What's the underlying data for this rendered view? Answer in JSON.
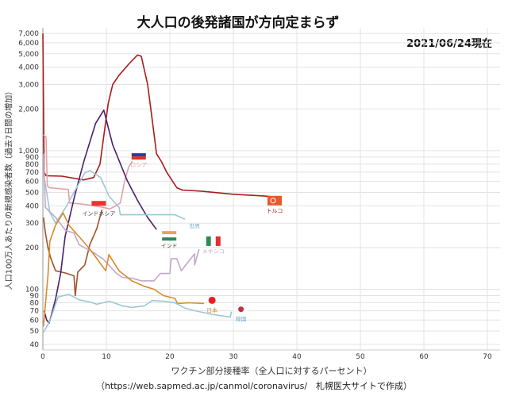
{
  "chart_data": {
    "type": "line",
    "title": "大人口の後発諸国が方向定まらず",
    "subtitle": "2021/06/24現在",
    "xlabel": "ワクチン部分接種率（全人口に対するパーセント）",
    "ylabel": "人口100万人あたりの新規感染者数（過去7日間の増加）",
    "source": "（https://web.sapmed.ac.jp/canmol/coronavirus/　札幌医大サイトで作成）",
    "xlim": [
      0,
      72
    ],
    "ylim": [
      36.5,
      7700
    ],
    "yscale": "log",
    "grid": true,
    "x_ticks": [
      0,
      10,
      20,
      30,
      40,
      50,
      60,
      70
    ],
    "y_ticks": [
      40,
      50,
      60,
      70,
      80,
      90,
      100,
      200,
      300,
      400,
      500,
      600,
      700,
      800,
      900,
      1000,
      2000,
      3000,
      4000,
      5000,
      6000,
      7000
    ],
    "y_tick_labels": [
      "40",
      "50",
      "60",
      "70",
      "80",
      "90",
      "100",
      "200",
      "300",
      "400",
      "500",
      "600",
      "700",
      "800",
      "900",
      "1,000",
      "2,000",
      "3,000",
      "4,000",
      "5,000",
      "6,000",
      "7,000"
    ],
    "series": [
      {
        "name": "トルコ",
        "color": "#a81c1c",
        "flag": "turkey-flag",
        "points": [
          [
            0,
            7000
          ],
          [
            0.2,
            700
          ],
          [
            0.5,
            660
          ],
          [
            3,
            655
          ],
          [
            6.4,
            615
          ],
          [
            8,
            640
          ],
          [
            9,
            800
          ],
          [
            9.8,
            1500
          ],
          [
            10.3,
            2200
          ],
          [
            11,
            3000
          ],
          [
            12,
            3500
          ],
          [
            13.5,
            4200
          ],
          [
            14.9,
            4900
          ],
          [
            15.5,
            4800
          ],
          [
            16.5,
            3000
          ],
          [
            17.2,
            1700
          ],
          [
            17.9,
            950
          ],
          [
            18.7,
            830
          ],
          [
            19.5,
            700
          ],
          [
            21.1,
            540
          ],
          [
            22,
            520
          ],
          [
            25,
            510
          ],
          [
            30,
            485
          ],
          [
            35,
            470
          ],
          [
            37,
            460
          ]
        ]
      },
      {
        "name": "ロシア",
        "color": "#e8a0a0",
        "flag": "russia-flag",
        "points": [
          [
            0.1,
            1300
          ],
          [
            0.5,
            1250
          ],
          [
            0.7,
            560
          ],
          [
            1,
            540
          ],
          [
            3,
            530
          ],
          [
            4,
            525
          ],
          [
            4.2,
            420
          ],
          [
            6.6,
            410
          ],
          [
            9.5,
            390
          ],
          [
            10.5,
            380
          ],
          [
            11.5,
            400
          ],
          [
            12.2,
            420
          ],
          [
            12.9,
            610
          ],
          [
            13.5,
            760
          ],
          [
            14.1,
            840
          ]
        ]
      },
      {
        "name": "インドネシア",
        "color": "#a0522d",
        "flag": "indonesia-flag",
        "points": [
          [
            0.1,
            330
          ],
          [
            0.4,
            255
          ],
          [
            0.8,
            200
          ],
          [
            1.2,
            170
          ],
          [
            2,
            136
          ],
          [
            3.6,
            131
          ],
          [
            4.9,
            125
          ],
          [
            5.1,
            90
          ],
          [
            5.5,
            133
          ],
          [
            6.6,
            150
          ],
          [
            7.4,
            210
          ],
          [
            8.5,
            275
          ],
          [
            9.3,
            375
          ]
        ]
      },
      {
        "name": "インド",
        "color": "#4b1f6f",
        "flag": "india-flag",
        "points": [
          [
            0.2,
            70
          ],
          [
            0.6,
            60
          ],
          [
            1,
            57
          ],
          [
            2,
            85
          ],
          [
            2.8,
            130
          ],
          [
            3.5,
            240
          ],
          [
            5,
            470
          ],
          [
            6.5,
            850
          ],
          [
            8.3,
            1570
          ],
          [
            9.6,
            1960
          ],
          [
            11,
            1100
          ],
          [
            13.25,
            613
          ],
          [
            15,
            430
          ],
          [
            16.5,
            330
          ],
          [
            17.9,
            270
          ]
        ]
      },
      {
        "name": "世界",
        "color": "#9cc8d8",
        "flag": "",
        "points": [
          [
            0.1,
            690
          ],
          [
            0.6,
            500
          ],
          [
            1.1,
            360
          ],
          [
            2,
            300
          ],
          [
            3.6,
            390
          ],
          [
            4.9,
            500
          ],
          [
            6.6,
            690
          ],
          [
            7.4,
            720
          ],
          [
            9.1,
            640
          ],
          [
            10.4,
            470
          ],
          [
            12,
            390
          ],
          [
            12.2,
            345
          ],
          [
            18,
            345
          ],
          [
            20.8,
            345
          ],
          [
            22.4,
            320
          ]
        ]
      },
      {
        "name": "メキシコ",
        "color": "#c0a8c8",
        "flag": "mexico-flag",
        "points": [
          [
            0.1,
            950
          ],
          [
            0.4,
            390
          ],
          [
            2,
            330
          ],
          [
            3.6,
            265
          ],
          [
            4.9,
            255
          ],
          [
            5.7,
            210
          ],
          [
            7.9,
            185
          ],
          [
            9.5,
            165
          ],
          [
            11.6,
            130
          ],
          [
            12.5,
            122
          ],
          [
            14.1,
            120
          ],
          [
            15.5,
            115
          ],
          [
            17.5,
            115
          ],
          [
            18.5,
            130
          ],
          [
            20,
            130
          ],
          [
            20.2,
            166
          ],
          [
            21.1,
            166
          ],
          [
            21.8,
            136
          ],
          [
            23,
            160
          ],
          [
            23.9,
            180
          ],
          [
            23.9,
            150
          ],
          [
            24.6,
            195
          ]
        ]
      },
      {
        "name": "日本",
        "color": "#d98a2b",
        "flag": "japan-flag",
        "points": [
          [
            0.1,
            54
          ],
          [
            0.8,
            125
          ],
          [
            1.1,
            222
          ],
          [
            2,
            290
          ],
          [
            3.2,
            355
          ],
          [
            4.1,
            290
          ],
          [
            5.7,
            240
          ],
          [
            7.4,
            195
          ],
          [
            9.9,
            136
          ],
          [
            10.4,
            178
          ],
          [
            12,
            136
          ],
          [
            14,
            115
          ],
          [
            16,
            105
          ],
          [
            17.5,
            100
          ],
          [
            19,
            90
          ],
          [
            20.8,
            86
          ],
          [
            21.2,
            79
          ],
          [
            23,
            80
          ],
          [
            25.4,
            79
          ]
        ]
      },
      {
        "name": "韓国",
        "color": "#9cc8d8",
        "flag": "korea-flag",
        "points": [
          [
            0.1,
            49
          ],
          [
            1.1,
            59
          ],
          [
            2.4,
            88
          ],
          [
            4.1,
            92
          ],
          [
            5.7,
            84
          ],
          [
            7.4,
            81
          ],
          [
            8.5,
            78
          ],
          [
            10.5,
            82
          ],
          [
            12.5,
            76
          ],
          [
            14,
            74
          ],
          [
            16,
            76
          ],
          [
            17.2,
            83
          ],
          [
            19,
            82
          ],
          [
            20.8,
            80
          ],
          [
            22.4,
            73
          ],
          [
            24,
            70
          ],
          [
            26.6,
            66
          ],
          [
            29.5,
            63
          ],
          [
            29.7,
            69
          ]
        ]
      }
    ]
  }
}
